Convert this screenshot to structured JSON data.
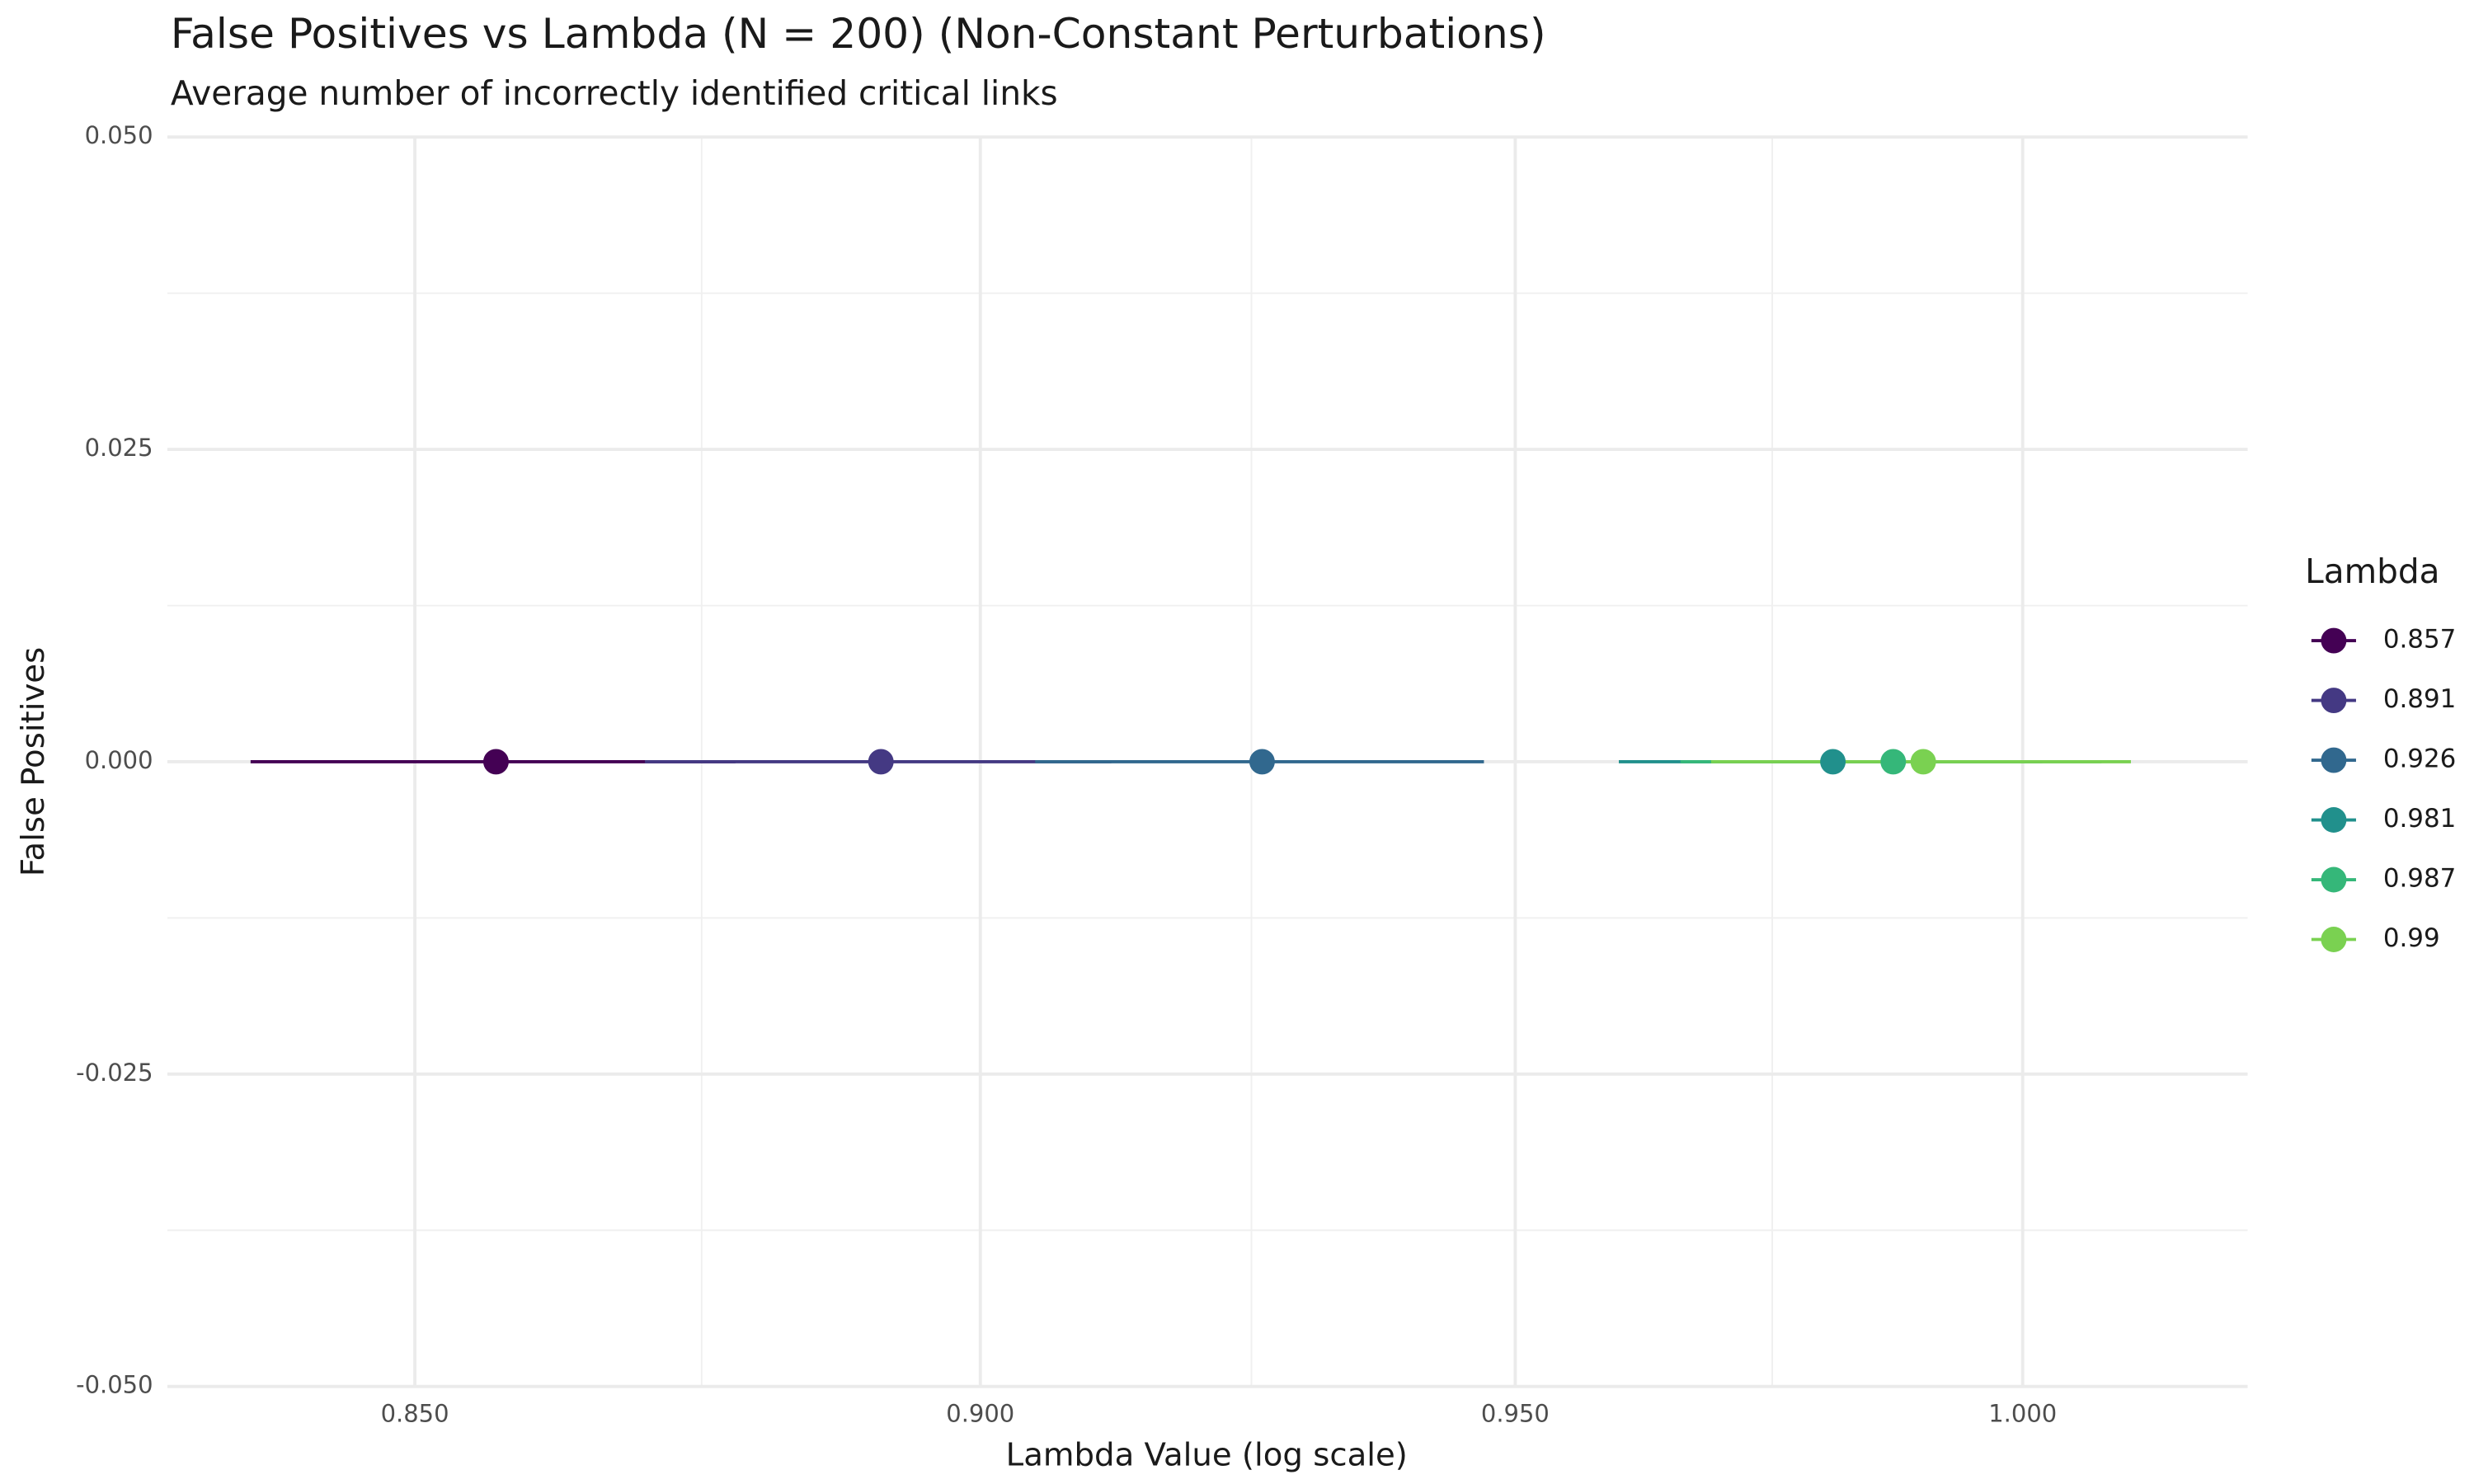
{
  "chart_data": {
    "type": "scatter",
    "title": "False Positives vs Lambda (N = 200) (Non-Constant Perturbations)",
    "subtitle": "Average number of incorrectly identified critical links",
    "x_label": "Lambda Value (log scale)",
    "y_label": "False Positives",
    "legend_title": "Lambda",
    "legend_position": "right",
    "x_log": true,
    "grid": true,
    "xlim": [
      0.829,
      1.023
    ],
    "ylim": [
      -0.05,
      0.05
    ],
    "xticks": [
      {
        "value": 0.85,
        "label": "0.850"
      },
      {
        "value": 0.9,
        "label": "0.900"
      },
      {
        "value": 0.95,
        "label": "0.950"
      },
      {
        "value": 1.0,
        "label": "1.000"
      }
    ],
    "yticks": [
      {
        "value": -0.05,
        "label": "-0.050"
      },
      {
        "value": -0.025,
        "label": "-0.025"
      },
      {
        "value": 0,
        "label": "0.000"
      },
      {
        "value": 0.025,
        "label": "0.025"
      },
      {
        "value": 0.05,
        "label": "0.050"
      }
    ],
    "xminor": [
      0.875,
      0.925,
      0.975
    ],
    "yminor": [
      -0.0375,
      -0.0125,
      0.0125,
      0.0375
    ],
    "series": [
      {
        "name": "0.857",
        "color": "#440154",
        "x": [
          0.857
        ],
        "values": [
          0
        ],
        "xerr": [
          0.021
        ]
      },
      {
        "name": "0.891",
        "color": "#443983",
        "x": [
          0.891
        ],
        "values": [
          0
        ],
        "xerr": [
          0.021
        ]
      },
      {
        "name": "0.926",
        "color": "#31688e",
        "x": [
          0.926
        ],
        "values": [
          0
        ],
        "xerr": [
          0.021
        ]
      },
      {
        "name": "0.981",
        "color": "#21908c",
        "x": [
          0.981
        ],
        "values": [
          0
        ],
        "xerr": [
          0.021
        ]
      },
      {
        "name": "0.987",
        "color": "#35b779",
        "x": [
          0.987
        ],
        "values": [
          0
        ],
        "xerr": [
          0.021
        ]
      },
      {
        "name": "0.99",
        "color": "#7ad151",
        "x": [
          0.99
        ],
        "values": [
          0
        ],
        "xerr": [
          0.021
        ]
      }
    ]
  }
}
